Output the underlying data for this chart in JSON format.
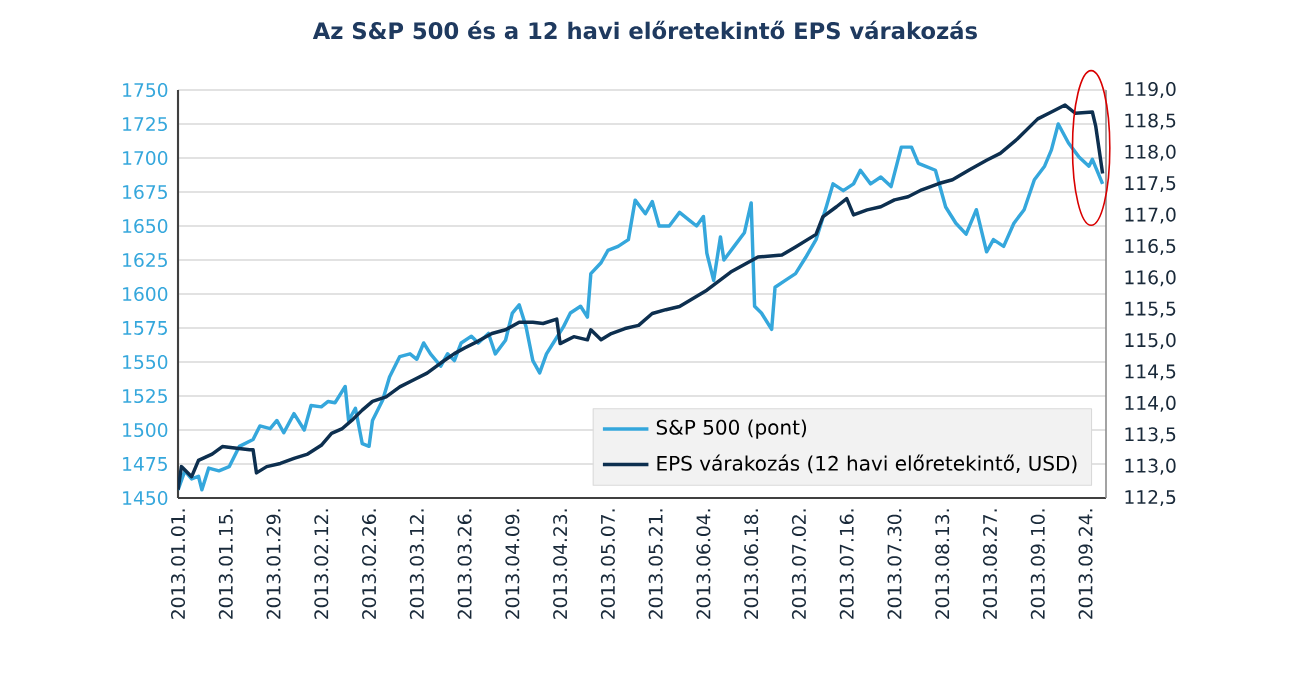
{
  "chart_data": {
    "type": "line",
    "title": "Az S&P 500 és a 12 havi előretekintő  EPS várakozás",
    "xlim": [
      "2013-01-01",
      "2013-09-30"
    ],
    "xticks": [
      {
        "value": "2013-01-01",
        "label": "2013.01.01."
      },
      {
        "value": "2013-01-15",
        "label": "2013.01.15."
      },
      {
        "value": "2013-01-29",
        "label": "2013.01.29."
      },
      {
        "value": "2013-02-12",
        "label": "2013.02.12."
      },
      {
        "value": "2013-02-26",
        "label": "2013.02.26."
      },
      {
        "value": "2013-03-12",
        "label": "2013.03.12."
      },
      {
        "value": "2013-03-26",
        "label": "2013.03.26."
      },
      {
        "value": "2013-04-09",
        "label": "2013.04.09."
      },
      {
        "value": "2013-04-23",
        "label": "2013.04.23."
      },
      {
        "value": "2013-05-07",
        "label": "2013.05.07."
      },
      {
        "value": "2013-05-21",
        "label": "2013.05.21."
      },
      {
        "value": "2013-06-04",
        "label": "2013.06.04."
      },
      {
        "value": "2013-06-18",
        "label": "2013.06.18."
      },
      {
        "value": "2013-07-02",
        "label": "2013.07.02."
      },
      {
        "value": "2013-07-16",
        "label": "2013.07.16."
      },
      {
        "value": "2013-07-30",
        "label": "2013.07.30."
      },
      {
        "value": "2013-08-13",
        "label": "2013.08.13."
      },
      {
        "value": "2013-08-27",
        "label": "2013.08.27."
      },
      {
        "value": "2013-09-10",
        "label": "2013.09.10."
      },
      {
        "value": "2013-09-24",
        "label": "2013.09.24."
      }
    ],
    "ylim": [
      1450,
      1750
    ],
    "yticks": [
      1450,
      1475,
      1500,
      1525,
      1550,
      1575,
      1600,
      1625,
      1650,
      1675,
      1700,
      1725,
      1750
    ],
    "y2lim": [
      112.5,
      119.0
    ],
    "y2ticks": [
      {
        "value": 112.5,
        "label": "112,5"
      },
      {
        "value": 113.0,
        "label": "113,0"
      },
      {
        "value": 113.5,
        "label": "113,5"
      },
      {
        "value": 114.0,
        "label": "114,0"
      },
      {
        "value": 114.5,
        "label": "114,5"
      },
      {
        "value": 115.0,
        "label": "115,0"
      },
      {
        "value": 115.5,
        "label": "115,5"
      },
      {
        "value": 116.0,
        "label": "116,0"
      },
      {
        "value": 116.5,
        "label": "116,5"
      },
      {
        "value": 117.0,
        "label": "117,0"
      },
      {
        "value": 117.5,
        "label": "117,5"
      },
      {
        "value": 118.0,
        "label": "118,0"
      },
      {
        "value": 118.5,
        "label": "118,5"
      },
      {
        "value": 119.0,
        "label": "119,0"
      }
    ],
    "grid": "y",
    "legend": "bottom right",
    "marker": "none",
    "line_style": "solid",
    "series": [
      {
        "name": "S&P 500 (pont)",
        "color": "#35a7dc",
        "x": [
          "2013-01-01",
          "2013-01-03",
          "2013-01-05",
          "2013-01-07",
          "2013-01-08",
          "2013-01-10",
          "2013-01-13",
          "2013-01-16",
          "2013-01-19",
          "2013-01-23",
          "2013-01-25",
          "2013-01-28",
          "2013-01-30",
          "2013-02-01",
          "2013-02-04",
          "2013-02-07",
          "2013-02-09",
          "2013-02-12",
          "2013-02-14",
          "2013-02-16",
          "2013-02-19",
          "2013-02-20",
          "2013-02-22",
          "2013-02-24",
          "2013-02-26",
          "2013-02-27",
          "2013-03-02",
          "2013-03-04",
          "2013-03-07",
          "2013-03-10",
          "2013-03-12",
          "2013-03-14",
          "2013-03-16",
          "2013-03-19",
          "2013-03-21",
          "2013-03-23",
          "2013-03-25",
          "2013-03-28",
          "2013-03-30",
          "2013-04-02",
          "2013-04-04",
          "2013-04-07",
          "2013-04-09",
          "2013-04-11",
          "2013-04-13",
          "2013-04-15",
          "2013-04-17",
          "2013-04-19",
          "2013-04-21",
          "2013-04-24",
          "2013-04-26",
          "2013-04-29",
          "2013-05-01",
          "2013-05-02",
          "2013-05-05",
          "2013-05-07",
          "2013-05-10",
          "2013-05-13",
          "2013-05-15",
          "2013-05-18",
          "2013-05-20",
          "2013-05-22",
          "2013-05-25",
          "2013-05-28",
          "2013-05-31",
          "2013-06-02",
          "2013-06-04",
          "2013-06-05",
          "2013-06-07",
          "2013-06-09",
          "2013-06-10",
          "2013-06-13",
          "2013-06-16",
          "2013-06-18",
          "2013-06-19",
          "2013-06-21",
          "2013-06-24",
          "2013-06-25",
          "2013-06-28",
          "2013-07-01",
          "2013-07-04",
          "2013-07-07",
          "2013-07-10",
          "2013-07-12",
          "2013-07-15",
          "2013-07-18",
          "2013-07-20",
          "2013-07-23",
          "2013-07-26",
          "2013-07-29",
          "2013-08-01",
          "2013-08-04",
          "2013-08-06",
          "2013-08-08",
          "2013-08-11",
          "2013-08-14",
          "2013-08-17",
          "2013-08-20",
          "2013-08-23",
          "2013-08-26",
          "2013-08-28",
          "2013-08-31",
          "2013-09-03",
          "2013-09-06",
          "2013-09-09",
          "2013-09-12",
          "2013-09-14",
          "2013-09-16",
          "2013-09-19",
          "2013-09-22",
          "2013-09-25",
          "2013-09-26",
          "2013-09-29"
        ],
        "values": [
          1456,
          1470,
          1464,
          1466,
          1456,
          1472,
          1470,
          1473,
          1488,
          1493,
          1503,
          1501,
          1507,
          1498,
          1512,
          1500,
          1518,
          1517,
          1521,
          1520,
          1532,
          1507,
          1516,
          1490,
          1488,
          1507,
          1522,
          1539,
          1554,
          1556,
          1552,
          1564,
          1556,
          1547,
          1556,
          1551,
          1564,
          1569,
          1564,
          1571,
          1556,
          1566,
          1586,
          1592,
          1576,
          1551,
          1542,
          1556,
          1564,
          1576,
          1586,
          1591,
          1583,
          1615,
          1623,
          1632,
          1635,
          1640,
          1669,
          1659,
          1668,
          1650,
          1650,
          1660,
          1654,
          1650,
          1657,
          1630,
          1610,
          1642,
          1625,
          1635,
          1645,
          1667,
          1591,
          1586,
          1574,
          1605,
          1610,
          1615,
          1627,
          1640,
          1664,
          1681,
          1676,
          1681,
          1691,
          1681,
          1686,
          1679,
          1708,
          1708,
          1696,
          1694,
          1691,
          1664,
          1652,
          1644,
          1662,
          1631,
          1640,
          1635,
          1652,
          1662,
          1684,
          1694,
          1706,
          1725,
          1711,
          1701,
          1694,
          1699,
          1681
        ]
      },
      {
        "name": "EPS várakozás (12 havi előretekintő, USD)",
        "color": "#0d2f4f",
        "axis": "y2",
        "x": [
          "2013-01-01",
          "2013-01-02",
          "2013-01-05",
          "2013-01-07",
          "2013-01-11",
          "2013-01-14",
          "2013-01-17",
          "2013-01-22",
          "2013-01-23",
          "2013-01-24",
          "2013-01-27",
          "2013-01-31",
          "2013-02-04",
          "2013-02-08",
          "2013-02-12",
          "2013-02-15",
          "2013-02-18",
          "2013-02-21",
          "2013-02-24",
          "2013-02-27",
          "2013-03-03",
          "2013-03-07",
          "2013-03-11",
          "2013-03-15",
          "2013-03-19",
          "2013-03-23",
          "2013-03-26",
          "2013-03-30",
          "2013-04-03",
          "2013-04-07",
          "2013-04-11",
          "2013-04-15",
          "2013-04-18",
          "2013-04-22",
          "2013-04-23",
          "2013-04-27",
          "2013-05-01",
          "2013-05-02",
          "2013-05-05",
          "2013-05-08",
          "2013-05-12",
          "2013-05-16",
          "2013-05-20",
          "2013-05-24",
          "2013-05-28",
          "2013-06-05",
          "2013-06-12",
          "2013-06-20",
          "2013-06-27",
          "2013-07-01",
          "2013-07-07",
          "2013-07-09",
          "2013-07-13",
          "2013-07-16",
          "2013-07-18",
          "2013-07-22",
          "2013-07-26",
          "2013-07-30",
          "2013-08-03",
          "2013-08-07",
          "2013-08-12",
          "2013-08-16",
          "2013-08-21",
          "2013-08-26",
          "2013-08-30",
          "2013-09-04",
          "2013-09-10",
          "2013-09-14",
          "2013-09-18",
          "2013-09-21",
          "2013-09-26",
          "2013-09-27",
          "2013-09-29"
        ],
        "values": [
          112.63,
          113.0,
          112.84,
          113.1,
          113.2,
          113.32,
          113.3,
          113.27,
          113.27,
          112.9,
          113.0,
          113.05,
          113.13,
          113.2,
          113.34,
          113.53,
          113.6,
          113.74,
          113.9,
          114.04,
          114.11,
          114.27,
          114.38,
          114.49,
          114.65,
          114.8,
          114.89,
          115.0,
          115.12,
          115.18,
          115.3,
          115.3,
          115.28,
          115.35,
          114.96,
          115.07,
          115.02,
          115.18,
          115.02,
          115.12,
          115.2,
          115.25,
          115.44,
          115.5,
          115.55,
          115.81,
          116.1,
          116.34,
          116.37,
          116.5,
          116.7,
          116.98,
          117.14,
          117.27,
          117.01,
          117.09,
          117.14,
          117.25,
          117.3,
          117.41,
          117.51,
          117.57,
          117.73,
          117.88,
          117.99,
          118.22,
          118.54,
          118.65,
          118.76,
          118.63,
          118.65,
          118.42,
          117.67
        ]
      }
    ]
  }
}
